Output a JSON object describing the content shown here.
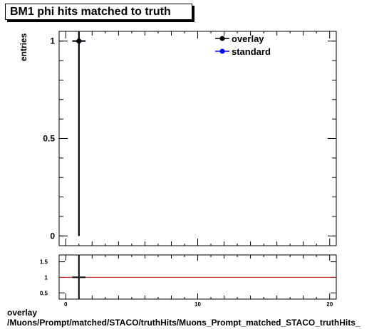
{
  "chart_data": [
    {
      "type": "scatter",
      "title": "BM1 phi hits matched to truth",
      "ylabel": "entries",
      "xlim": [
        -0.5,
        20.5
      ],
      "ylim": [
        -0.05,
        1.05
      ],
      "yticks": [
        {
          "v": 0,
          "label": "0"
        },
        {
          "v": 0.5,
          "label": "0.5"
        },
        {
          "v": 1,
          "label": "1"
        }
      ],
      "grid": false,
      "legend_position": "top-right",
      "series": [
        {
          "name": "overlay",
          "color": "#000000",
          "x": [
            1
          ],
          "y": [
            1
          ],
          "yerr": [
            1
          ],
          "xerr": [
            0.5
          ]
        },
        {
          "name": "standard",
          "color": "#0000ff",
          "x": [
            1
          ],
          "y": [
            1
          ],
          "yerr": [
            1
          ],
          "xerr": [
            0.5
          ]
        }
      ]
    },
    {
      "type": "line",
      "xlim": [
        -0.5,
        20.5
      ],
      "ylim": [
        0.3,
        1.72
      ],
      "xticks": [
        {
          "v": 0,
          "label": "0"
        },
        {
          "v": 10,
          "label": "10"
        },
        {
          "v": 20,
          "label": "20"
        }
      ],
      "yticks": [
        {
          "v": 0.5,
          "label": "0.5"
        },
        {
          "v": 1,
          "label": "1"
        },
        {
          "v": 1.5,
          "label": "1.5"
        }
      ],
      "reference_line": {
        "y": 1,
        "color": "#cc0000"
      },
      "series": [
        {
          "x": [
            1
          ],
          "y": [
            1
          ],
          "yerr": [
            1
          ],
          "xerr": [
            0.5
          ],
          "color": "#000000"
        }
      ]
    }
  ],
  "footer": {
    "line1": "overlay",
    "line2": "/Muons/Prompt/matched/STACO/truthHits/Muons_Prompt_matched_STACO_truthHits_"
  }
}
